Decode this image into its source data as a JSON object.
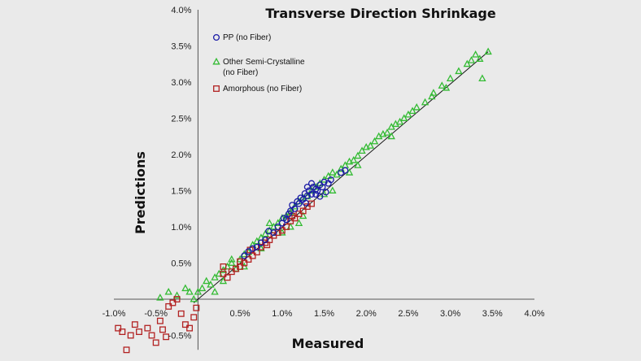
{
  "chart_data": {
    "type": "scatter",
    "title": "Transverse Direction Shrinkage",
    "xlabel": "Measured",
    "ylabel": "Predictions",
    "xlim": [
      -1.0,
      4.0
    ],
    "ylim": [
      -0.7,
      4.0
    ],
    "x_ticks": [
      -1.0,
      -0.5,
      0.0,
      0.5,
      1.0,
      1.5,
      2.0,
      2.5,
      3.0,
      3.5,
      4.0
    ],
    "x_tick_labels": [
      "-1.0%",
      "-0.5%",
      "0.0%",
      "0.5%",
      "1.0%",
      "1.5%",
      "2.0%",
      "2.5%",
      "3.0%",
      "3.5%",
      "4.0%"
    ],
    "y_ticks": [
      -0.5,
      0.5,
      1.0,
      1.5,
      2.0,
      2.5,
      3.0,
      3.5,
      4.0
    ],
    "y_tick_labels": [
      "-0.5%",
      "0.5%",
      "1.0%",
      "1.5%",
      "2.0%",
      "2.5%",
      "3.0%",
      "3.5%",
      "4.0%"
    ],
    "legend_position": "top-left",
    "reference_line": {
      "from": [
        -0.05,
        -0.05
      ],
      "to": [
        3.45,
        3.42
      ]
    },
    "series": [
      {
        "name": "PP (no Fiber)",
        "marker": "circle",
        "color": "#1a1aa6",
        "points": [
          [
            0.55,
            0.6
          ],
          [
            0.6,
            0.66
          ],
          [
            0.65,
            0.7
          ],
          [
            0.7,
            0.72
          ],
          [
            0.75,
            0.78
          ],
          [
            0.8,
            0.82
          ],
          [
            0.84,
            0.94
          ],
          [
            0.9,
            0.92
          ],
          [
            0.95,
            1.0
          ],
          [
            1.0,
            1.05
          ],
          [
            1.02,
            1.12
          ],
          [
            1.05,
            1.1
          ],
          [
            1.08,
            1.18
          ],
          [
            1.1,
            1.22
          ],
          [
            1.12,
            1.3
          ],
          [
            1.15,
            1.25
          ],
          [
            1.18,
            1.35
          ],
          [
            1.2,
            1.32
          ],
          [
            1.22,
            1.4
          ],
          [
            1.25,
            1.38
          ],
          [
            1.27,
            1.46
          ],
          [
            1.3,
            1.43
          ],
          [
            1.32,
            1.5
          ],
          [
            1.35,
            1.45
          ],
          [
            1.37,
            1.55
          ],
          [
            1.4,
            1.52
          ],
          [
            1.42,
            1.5
          ],
          [
            1.45,
            1.58
          ],
          [
            1.48,
            1.55
          ],
          [
            1.5,
            1.62
          ],
          [
            1.52,
            1.48
          ],
          [
            1.55,
            1.6
          ],
          [
            1.58,
            1.65
          ],
          [
            1.3,
            1.55
          ],
          [
            1.35,
            1.6
          ],
          [
            1.4,
            1.45
          ],
          [
            1.28,
            1.33
          ],
          [
            1.45,
            1.42
          ],
          [
            1.7,
            1.75
          ],
          [
            1.75,
            1.78
          ]
        ]
      },
      {
        "name": "Other Semi-Crystalline (no Fiber)",
        "marker": "triangle",
        "color": "#33bb33",
        "points": [
          [
            -0.45,
            0.02
          ],
          [
            -0.35,
            0.1
          ],
          [
            -0.25,
            0.05
          ],
          [
            -0.15,
            0.15
          ],
          [
            -0.1,
            0.1
          ],
          [
            -0.05,
            0.0
          ],
          [
            0.0,
            0.1
          ],
          [
            0.05,
            0.15
          ],
          [
            0.1,
            0.25
          ],
          [
            0.15,
            0.2
          ],
          [
            0.2,
            0.3
          ],
          [
            0.25,
            0.35
          ],
          [
            0.3,
            0.4
          ],
          [
            0.35,
            0.45
          ],
          [
            0.4,
            0.5
          ],
          [
            0.45,
            0.42
          ],
          [
            0.5,
            0.55
          ],
          [
            0.55,
            0.62
          ],
          [
            0.6,
            0.65
          ],
          [
            0.65,
            0.75
          ],
          [
            0.7,
            0.8
          ],
          [
            0.75,
            0.85
          ],
          [
            0.8,
            0.9
          ],
          [
            0.85,
            0.95
          ],
          [
            0.9,
            1.0
          ],
          [
            0.95,
            1.05
          ],
          [
            1.0,
            1.12
          ],
          [
            1.05,
            1.15
          ],
          [
            1.1,
            1.2
          ],
          [
            1.15,
            1.28
          ],
          [
            1.2,
            1.35
          ],
          [
            1.25,
            1.4
          ],
          [
            1.3,
            1.42
          ],
          [
            1.35,
            1.5
          ],
          [
            1.4,
            1.55
          ],
          [
            1.45,
            1.6
          ],
          [
            1.5,
            1.65
          ],
          [
            1.55,
            1.7
          ],
          [
            1.6,
            1.75
          ],
          [
            1.65,
            1.72
          ],
          [
            1.7,
            1.8
          ],
          [
            1.75,
            1.85
          ],
          [
            1.8,
            1.9
          ],
          [
            1.85,
            1.92
          ],
          [
            1.9,
            1.98
          ],
          [
            1.95,
            2.05
          ],
          [
            2.0,
            2.1
          ],
          [
            2.05,
            2.12
          ],
          [
            2.1,
            2.18
          ],
          [
            2.15,
            2.25
          ],
          [
            2.2,
            2.28
          ],
          [
            2.25,
            2.3
          ],
          [
            2.3,
            2.38
          ],
          [
            2.35,
            2.42
          ],
          [
            2.4,
            2.45
          ],
          [
            2.45,
            2.5
          ],
          [
            2.5,
            2.55
          ],
          [
            2.55,
            2.6
          ],
          [
            2.6,
            2.65
          ],
          [
            2.7,
            2.72
          ],
          [
            2.8,
            2.85
          ],
          [
            2.9,
            2.95
          ],
          [
            3.0,
            3.05
          ],
          [
            3.1,
            3.15
          ],
          [
            3.2,
            3.25
          ],
          [
            3.25,
            3.3
          ],
          [
            3.3,
            3.38
          ],
          [
            3.35,
            3.32
          ],
          [
            3.38,
            3.05
          ],
          [
            3.45,
            3.42
          ],
          [
            2.95,
            2.92
          ],
          [
            2.78,
            2.8
          ],
          [
            1.0,
            0.92
          ],
          [
            1.2,
            1.05
          ],
          [
            1.5,
            1.45
          ],
          [
            1.8,
            1.75
          ],
          [
            0.4,
            0.55
          ],
          [
            0.3,
            0.25
          ],
          [
            0.2,
            0.1
          ],
          [
            0.55,
            0.45
          ],
          [
            1.25,
            1.15
          ],
          [
            1.6,
            1.5
          ],
          [
            1.9,
            1.85
          ],
          [
            2.3,
            2.25
          ],
          [
            0.75,
            0.7
          ],
          [
            0.85,
            1.05
          ],
          [
            1.1,
            1.0
          ]
        ]
      },
      {
        "name": "Amorphous (no Fiber)",
        "marker": "square",
        "color": "#b22222",
        "points": [
          [
            -0.95,
            -0.4
          ],
          [
            -0.9,
            -0.45
          ],
          [
            -0.85,
            -0.7
          ],
          [
            -0.8,
            -0.5
          ],
          [
            -0.75,
            -0.35
          ],
          [
            -0.7,
            -0.45
          ],
          [
            -0.6,
            -0.4
          ],
          [
            -0.55,
            -0.5
          ],
          [
            -0.5,
            -0.6
          ],
          [
            -0.45,
            -0.3
          ],
          [
            -0.42,
            -0.42
          ],
          [
            -0.38,
            -0.52
          ],
          [
            -0.35,
            -0.1
          ],
          [
            -0.3,
            -0.05
          ],
          [
            -0.25,
            0.0
          ],
          [
            -0.2,
            -0.2
          ],
          [
            -0.15,
            -0.35
          ],
          [
            -0.1,
            -0.4
          ],
          [
            -0.05,
            -0.25
          ],
          [
            -0.02,
            -0.12
          ],
          [
            0.3,
            0.35
          ],
          [
            0.35,
            0.3
          ],
          [
            0.4,
            0.38
          ],
          [
            0.45,
            0.42
          ],
          [
            0.5,
            0.45
          ],
          [
            0.55,
            0.5
          ],
          [
            0.6,
            0.55
          ],
          [
            0.65,
            0.6
          ],
          [
            0.7,
            0.65
          ],
          [
            0.75,
            0.72
          ],
          [
            0.8,
            0.78
          ],
          [
            0.85,
            0.82
          ],
          [
            0.9,
            0.88
          ],
          [
            0.95,
            0.92
          ],
          [
            1.0,
            0.95
          ],
          [
            1.05,
            1.0
          ],
          [
            1.1,
            1.08
          ],
          [
            1.15,
            1.12
          ],
          [
            1.2,
            1.18
          ],
          [
            1.25,
            1.22
          ],
          [
            1.3,
            1.28
          ],
          [
            1.35,
            1.32
          ],
          [
            0.3,
            0.45
          ],
          [
            0.5,
            0.52
          ],
          [
            0.62,
            0.68
          ],
          [
            0.82,
            0.75
          ],
          [
            1.12,
            1.15
          ]
        ]
      }
    ]
  }
}
